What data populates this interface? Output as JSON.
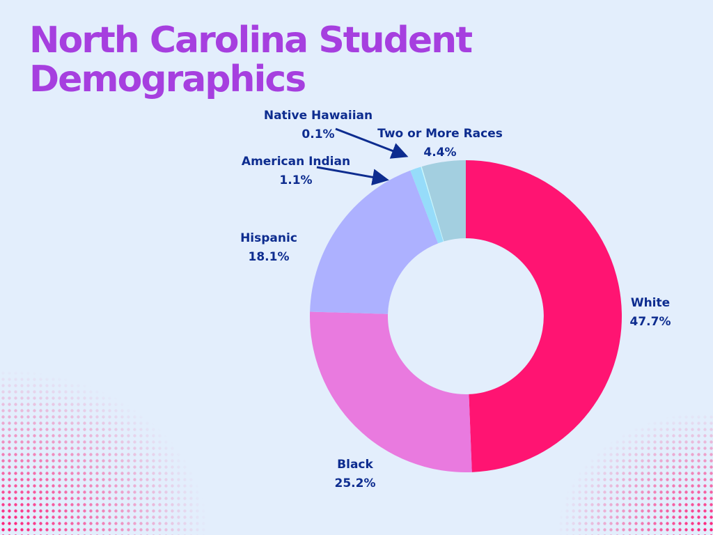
{
  "chart_data": {
    "type": "donut",
    "title": "North Carolina Student Demographics",
    "categories": [
      "White",
      "Black",
      "Hispanic",
      "American Indian",
      "Native Hawaiian",
      "Two or More Races"
    ],
    "values": [
      47.7,
      25.2,
      18.1,
      1.1,
      0.1,
      4.4
    ],
    "value_labels": [
      "47.7%",
      "25.2%",
      "18.1%",
      "1.1%",
      "0.1%",
      "4.4%"
    ],
    "colors": [
      "#ff1472",
      "#e97adf",
      "#adb1ff",
      "#96dcfa",
      "#c8f8fc",
      "#a3cfe0"
    ]
  }
}
